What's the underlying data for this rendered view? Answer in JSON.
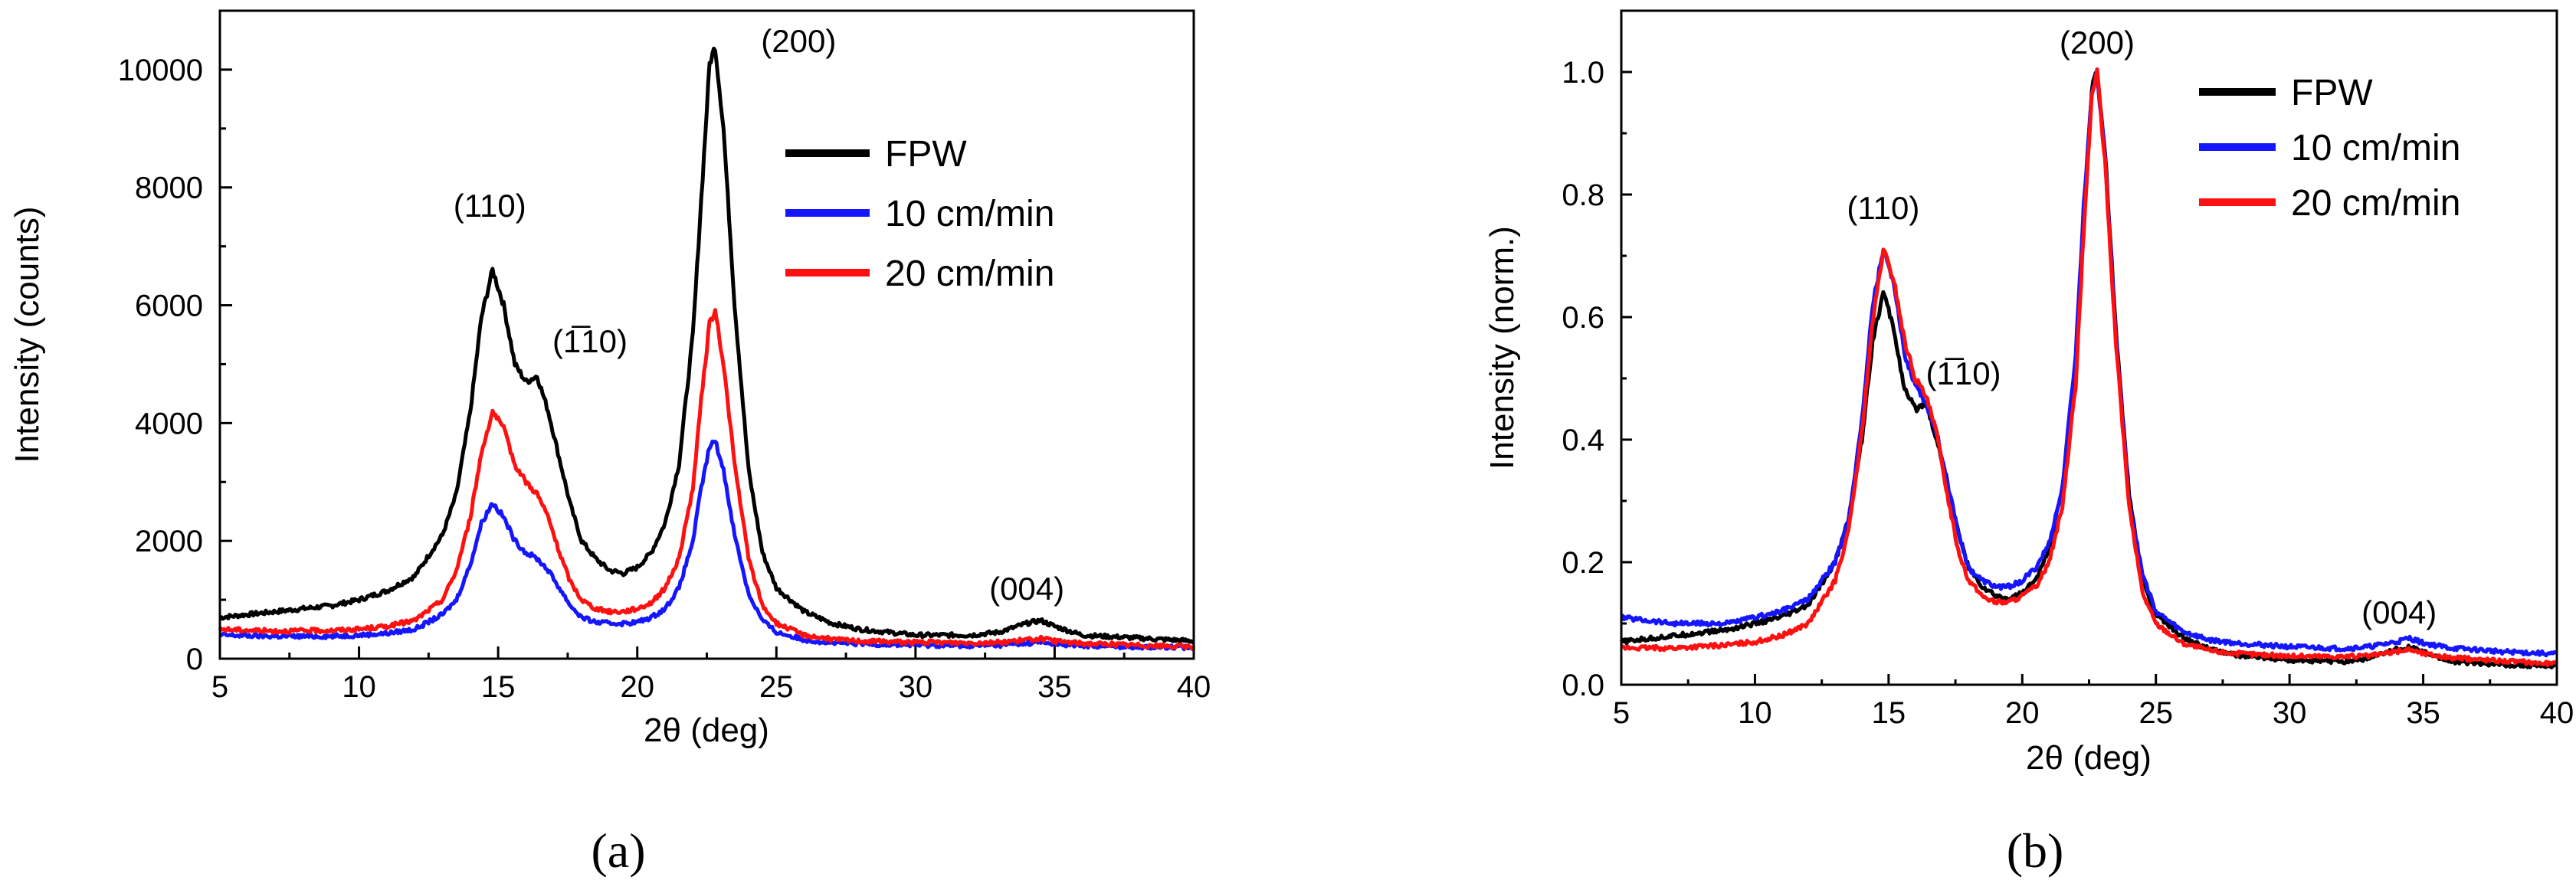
{
  "chart_data": [
    {
      "type": "line",
      "panel_label": "(a)",
      "xlabel": "2θ (deg)",
      "ylabel": "Intensity (counts)",
      "xlim": [
        5,
        40
      ],
      "ylim": [
        0,
        11000
      ],
      "xticks": [
        5,
        10,
        15,
        20,
        25,
        30,
        35,
        40
      ],
      "yticks": [
        0,
        2000,
        4000,
        6000,
        8000,
        10000
      ],
      "legend_position": "top-right",
      "annotations": [
        {
          "text": "(200)",
          "x": 25.8,
          "y": 10300
        },
        {
          "text": "(110)",
          "x": 14.7,
          "y": 7500
        },
        {
          "text": "(1̅10)",
          "x": 18.3,
          "y": 5200
        },
        {
          "text": "(004)",
          "x": 34.0,
          "y": 1000
        }
      ],
      "series": [
        {
          "name": "FPW",
          "color": "#000000",
          "x": [
            5,
            7,
            9,
            10,
            11,
            12,
            13,
            13.5,
            14,
            14.4,
            14.8,
            15.2,
            15.6,
            16,
            16.4,
            16.8,
            17.2,
            17.6,
            18,
            18.5,
            19,
            19.5,
            20,
            20.5,
            21,
            21.5,
            22,
            22.3,
            22.6,
            22.8,
            23.1,
            23.5,
            24,
            24.5,
            25,
            26,
            27,
            28,
            30,
            32,
            33,
            34,
            34.5,
            35,
            36,
            38,
            40
          ],
          "values": [
            700,
            800,
            900,
            1000,
            1150,
            1400,
            2100,
            2800,
            4200,
            5800,
            6600,
            6000,
            5000,
            4700,
            4800,
            4200,
            3400,
            2600,
            2000,
            1700,
            1500,
            1450,
            1550,
            1800,
            2300,
            3300,
            5500,
            7800,
            10100,
            10400,
            9000,
            6000,
            3200,
            1800,
            1200,
            800,
            600,
            500,
            400,
            400,
            450,
            600,
            650,
            550,
            400,
            350,
            300
          ]
        },
        {
          "name": "10 cm/min",
          "color": "#1515ff",
          "x": [
            5,
            7,
            9,
            10,
            11,
            12,
            13,
            13.5,
            14,
            14.4,
            14.8,
            15.2,
            15.6,
            16,
            16.4,
            16.8,
            17.2,
            17.6,
            18,
            18.5,
            19,
            19.5,
            20,
            20.5,
            21,
            21.5,
            22,
            22.3,
            22.6,
            22.8,
            23.1,
            23.5,
            24,
            24.5,
            25,
            26,
            27,
            28,
            30,
            32,
            33,
            34,
            34.5,
            35,
            36,
            38,
            40
          ],
          "values": [
            400,
            380,
            380,
            400,
            430,
            500,
            750,
            1000,
            1600,
            2300,
            2650,
            2400,
            2000,
            1800,
            1700,
            1500,
            1200,
            900,
            700,
            620,
            600,
            600,
            620,
            700,
            850,
            1200,
            2000,
            2900,
            3600,
            3700,
            3200,
            2100,
            1100,
            650,
            450,
            320,
            270,
            250,
            230,
            220,
            230,
            260,
            280,
            250,
            220,
            200,
            190
          ]
        },
        {
          "name": "20 cm/min",
          "color": "#ff1010",
          "x": [
            5,
            7,
            9,
            10,
            11,
            12,
            13,
            13.5,
            14,
            14.4,
            14.8,
            15.2,
            15.6,
            16,
            16.4,
            16.8,
            17.2,
            17.6,
            18,
            18.5,
            19,
            19.5,
            20,
            20.5,
            21,
            21.5,
            22,
            22.3,
            22.6,
            22.8,
            23.1,
            23.5,
            24,
            24.5,
            25,
            26,
            27,
            28,
            30,
            32,
            33,
            34,
            34.5,
            35,
            36,
            38,
            40
          ],
          "values": [
            500,
            470,
            480,
            500,
            550,
            650,
            1000,
            1500,
            2400,
            3500,
            4200,
            3900,
            3300,
            3000,
            2800,
            2400,
            1800,
            1300,
            1000,
            850,
            800,
            800,
            850,
            950,
            1200,
            1700,
            2900,
            4400,
            5700,
            5900,
            5000,
            3300,
            1700,
            900,
            600,
            400,
            330,
            300,
            280,
            270,
            280,
            320,
            340,
            300,
            260,
            230,
            200
          ]
        }
      ]
    },
    {
      "type": "line",
      "panel_label": "(b)",
      "xlabel": "2θ (deg)",
      "ylabel": "Intensity (norm.)",
      "xlim": [
        5,
        40
      ],
      "ylim": [
        0,
        1.1
      ],
      "xticks": [
        5,
        10,
        15,
        20,
        25,
        30,
        35,
        40
      ],
      "yticks": [
        0.0,
        0.2,
        0.4,
        0.6,
        0.8,
        1.0
      ],
      "legend_position": "top-right",
      "annotations": [
        {
          "text": "(200)",
          "x": 22.8,
          "y": 1.03
        },
        {
          "text": "(110)",
          "x": 14.8,
          "y": 0.76
        },
        {
          "text": "(1̅10)",
          "x": 17.8,
          "y": 0.49
        },
        {
          "text": "(004)",
          "x": 34.1,
          "y": 0.1
        }
      ],
      "series": [
        {
          "name": "FPW",
          "color": "#000000",
          "x": [
            5,
            7,
            9,
            10,
            11,
            12,
            13,
            13.5,
            14,
            14.4,
            14.8,
            15.2,
            15.6,
            16,
            16.4,
            16.8,
            17.2,
            17.6,
            18,
            18.5,
            19,
            19.5,
            20,
            20.5,
            21,
            21.5,
            22,
            22.3,
            22.6,
            22.8,
            23.1,
            23.5,
            24,
            24.5,
            25,
            26,
            27,
            28,
            30,
            32,
            33,
            34,
            34.5,
            35,
            36,
            38,
            40
          ],
          "values": [
            0.07,
            0.08,
            0.09,
            0.1,
            0.11,
            0.13,
            0.2,
            0.27,
            0.4,
            0.56,
            0.64,
            0.58,
            0.48,
            0.45,
            0.46,
            0.4,
            0.33,
            0.25,
            0.19,
            0.16,
            0.145,
            0.14,
            0.15,
            0.17,
            0.22,
            0.32,
            0.53,
            0.75,
            0.97,
            1.0,
            0.87,
            0.58,
            0.31,
            0.17,
            0.115,
            0.077,
            0.058,
            0.048,
            0.04,
            0.038,
            0.043,
            0.058,
            0.062,
            0.053,
            0.038,
            0.033,
            0.03
          ]
        },
        {
          "name": "10 cm/min",
          "color": "#1515ff",
          "x": [
            5,
            7,
            9,
            10,
            11,
            12,
            13,
            13.5,
            14,
            14.4,
            14.8,
            15.2,
            15.6,
            16,
            16.4,
            16.8,
            17.2,
            17.6,
            18,
            18.5,
            19,
            19.5,
            20,
            20.5,
            21,
            21.5,
            22,
            22.3,
            22.6,
            22.8,
            23.1,
            23.5,
            24,
            24.5,
            25,
            26,
            27,
            28,
            30,
            32,
            33,
            34,
            34.5,
            35,
            36,
            38,
            40
          ],
          "values": [
            0.11,
            0.1,
            0.1,
            0.11,
            0.12,
            0.14,
            0.2,
            0.27,
            0.43,
            0.62,
            0.71,
            0.65,
            0.54,
            0.49,
            0.46,
            0.41,
            0.33,
            0.25,
            0.19,
            0.17,
            0.16,
            0.16,
            0.17,
            0.19,
            0.23,
            0.32,
            0.54,
            0.78,
            0.97,
            1.0,
            0.86,
            0.57,
            0.3,
            0.18,
            0.12,
            0.087,
            0.073,
            0.068,
            0.062,
            0.059,
            0.062,
            0.07,
            0.076,
            0.068,
            0.06,
            0.054,
            0.05
          ]
        },
        {
          "name": "20 cm/min",
          "color": "#ff1010",
          "x": [
            5,
            7,
            9,
            10,
            11,
            12,
            13,
            13.5,
            14,
            14.4,
            14.8,
            15.2,
            15.6,
            16,
            16.4,
            16.8,
            17.2,
            17.6,
            18,
            18.5,
            19,
            19.5,
            20,
            20.5,
            21,
            21.5,
            22,
            22.3,
            22.6,
            22.8,
            23.1,
            23.5,
            24,
            24.5,
            25,
            26,
            27,
            28,
            30,
            32,
            33,
            34,
            34.5,
            35,
            36,
            38,
            40
          ],
          "values": [
            0.06,
            0.06,
            0.065,
            0.07,
            0.08,
            0.1,
            0.17,
            0.25,
            0.41,
            0.59,
            0.71,
            0.66,
            0.56,
            0.5,
            0.47,
            0.41,
            0.31,
            0.22,
            0.17,
            0.145,
            0.135,
            0.135,
            0.145,
            0.16,
            0.2,
            0.29,
            0.49,
            0.74,
            0.96,
            1.0,
            0.85,
            0.56,
            0.29,
            0.15,
            0.1,
            0.068,
            0.056,
            0.051,
            0.047,
            0.046,
            0.047,
            0.054,
            0.058,
            0.051,
            0.044,
            0.039,
            0.034
          ]
        }
      ]
    }
  ]
}
